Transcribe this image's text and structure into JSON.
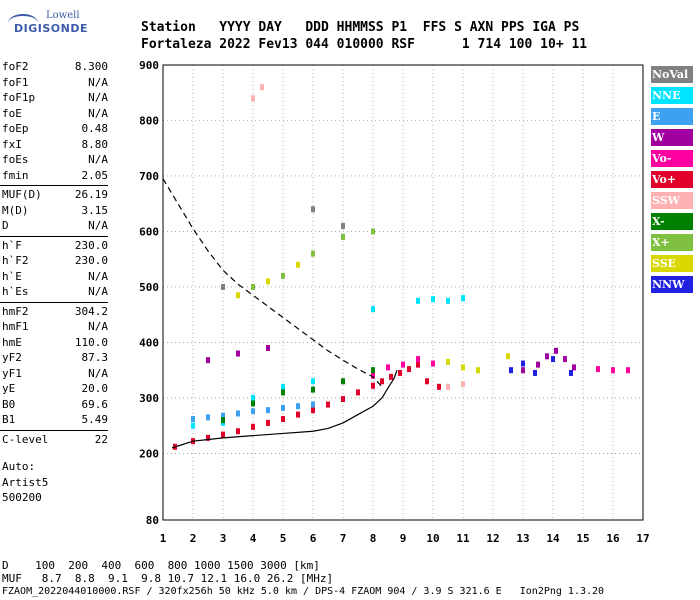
{
  "header": {
    "labels": "Station   YYYY DAY   DDD HHMMSS P1  FFS S AXN PPS IGA PS",
    "values": "Fortaleza 2022 Fev13 044 010000 RSF      1 714 100 10+ 11"
  },
  "logo": {
    "line1": "Lowell",
    "line2": "DIGISONDE"
  },
  "parameters": [
    {
      "name": "foF2",
      "value": "8.300"
    },
    {
      "name": "foF1",
      "value": "N/A"
    },
    {
      "name": "foF1p",
      "value": "N/A"
    },
    {
      "name": "foE",
      "value": "N/A"
    },
    {
      "name": "foEp",
      "value": "0.48"
    },
    {
      "name": "fxI",
      "value": "8.80"
    },
    {
      "name": "foEs",
      "value": "N/A"
    },
    {
      "name": "fmin",
      "value": "2.05"
    },
    {
      "name": "MUF(D)",
      "value": "26.19"
    },
    {
      "name": "M(D)",
      "value": "3.15"
    },
    {
      "name": "D",
      "value": "N/A"
    },
    {
      "name": "h`F",
      "value": "230.0"
    },
    {
      "name": "h`F2",
      "value": "230.0"
    },
    {
      "name": "h`E",
      "value": "N/A"
    },
    {
      "name": "h`Es",
      "value": "N/A"
    },
    {
      "name": "hmF2",
      "value": "304.2"
    },
    {
      "name": "hmF1",
      "value": "N/A"
    },
    {
      "name": "hmE",
      "value": "110.0"
    },
    {
      "name": "yF2",
      "value": "87.3"
    },
    {
      "name": "yF1",
      "value": "N/A"
    },
    {
      "name": "yE",
      "value": "20.0"
    },
    {
      "name": "B0",
      "value": "69.6"
    },
    {
      "name": "B1",
      "value": "5.49"
    },
    {
      "name": "C-level",
      "value": "22"
    }
  ],
  "extra_lines": [
    "Auto:",
    "Artist5",
    "500200"
  ],
  "legend": [
    {
      "label": "NoVal",
      "color": "#808080"
    },
    {
      "label": "NNE",
      "color": "#00e5ff"
    },
    {
      "label": "E",
      "color": "#3ea0f0"
    },
    {
      "label": "W",
      "color": "#a000a0"
    },
    {
      "label": "Vo-",
      "color": "#ff00a0"
    },
    {
      "label": "Vo+",
      "color": "#e0002a"
    },
    {
      "label": "SSW",
      "color": "#ffb0b0"
    },
    {
      "label": "X-",
      "color": "#008000"
    },
    {
      "label": "X+",
      "color": "#80c040"
    },
    {
      "label": "SSE",
      "color": "#d8d800"
    },
    {
      "label": "NNW",
      "color": "#2020e0"
    }
  ],
  "footer": {
    "d_row": "D    100  200  400  600  800 1000 1500 3000 [km]",
    "muf_row": "MUF   8.7  8.8  9.1  9.8 10.7 12.1 16.0 26.2 [MHz]",
    "file_row": "FZAOM_2022044010000.RSF / 320fx256h 50 kHz 5.0 km / DPS-4 FZAOM 904 / 3.9 S 321.6 E   Ion2Png 1.3.20"
  },
  "chart_data": {
    "type": "scatter",
    "title": "",
    "xlabel": "",
    "ylabel": "",
    "xlim": [
      1,
      17
    ],
    "ylim": [
      80,
      900
    ],
    "x_ticks": [
      1,
      2,
      3,
      4,
      5,
      6,
      7,
      8,
      9,
      10,
      11,
      12,
      13,
      14,
      15,
      16,
      17
    ],
    "y_ticks": [
      80,
      200,
      300,
      400,
      500,
      600,
      700,
      800,
      900
    ],
    "grid": true,
    "legend_placement": "right",
    "series": [
      {
        "name": "Vo+",
        "color": "#e0002a",
        "points": [
          [
            1.4,
            212
          ],
          [
            2,
            222
          ],
          [
            2.5,
            228
          ],
          [
            3,
            234
          ],
          [
            3.5,
            240
          ],
          [
            4,
            248
          ],
          [
            4.5,
            255
          ],
          [
            5,
            262
          ],
          [
            5.5,
            270
          ],
          [
            6,
            278
          ],
          [
            6.5,
            288
          ],
          [
            7,
            298
          ],
          [
            7.5,
            310
          ],
          [
            8,
            322
          ],
          [
            8.3,
            330
          ],
          [
            8.6,
            338
          ],
          [
            8.9,
            345
          ],
          [
            9.2,
            352
          ],
          [
            9.5,
            360
          ],
          [
            9.8,
            330
          ],
          [
            10.2,
            320
          ]
        ]
      },
      {
        "name": "E",
        "color": "#3ea0f0",
        "points": [
          [
            2,
            262
          ],
          [
            2.5,
            265
          ],
          [
            3,
            268
          ],
          [
            3.5,
            272
          ],
          [
            4,
            276
          ],
          [
            4.5,
            278
          ],
          [
            5,
            282
          ],
          [
            5.5,
            285
          ],
          [
            6,
            288
          ]
        ]
      },
      {
        "name": "NNE",
        "color": "#00e5ff",
        "points": [
          [
            2,
            250
          ],
          [
            3,
            255
          ],
          [
            4,
            300
          ],
          [
            5,
            320
          ],
          [
            6,
            330
          ],
          [
            9.5,
            475
          ],
          [
            10,
            478
          ],
          [
            10.5,
            475
          ],
          [
            11,
            480
          ],
          [
            8,
            460
          ]
        ]
      },
      {
        "name": "W",
        "color": "#a000a0",
        "points": [
          [
            13.5,
            360
          ],
          [
            13.8,
            375
          ],
          [
            14.1,
            385
          ],
          [
            14.4,
            370
          ],
          [
            14.7,
            355
          ],
          [
            13,
            350
          ],
          [
            2.5,
            368
          ],
          [
            3.5,
            380
          ],
          [
            4.5,
            390
          ]
        ]
      },
      {
        "name": "NNW",
        "color": "#2020e0",
        "points": [
          [
            12.6,
            350
          ],
          [
            13,
            362
          ],
          [
            13.4,
            345
          ],
          [
            14,
            370
          ],
          [
            14.6,
            345
          ]
        ]
      },
      {
        "name": "SSE",
        "color": "#d8d800",
        "points": [
          [
            10.5,
            365
          ],
          [
            11,
            355
          ],
          [
            11.5,
            350
          ],
          [
            12.5,
            375
          ],
          [
            3.5,
            485
          ],
          [
            4.5,
            510
          ],
          [
            5.5,
            540
          ]
        ]
      },
      {
        "name": "Vo-",
        "color": "#ff00a0",
        "points": [
          [
            8,
            340
          ],
          [
            8.5,
            355
          ],
          [
            9,
            360
          ],
          [
            9.5,
            370
          ],
          [
            10,
            362
          ],
          [
            15.5,
            352
          ],
          [
            16,
            350
          ],
          [
            16.5,
            350
          ]
        ]
      },
      {
        "name": "X-",
        "color": "#008000",
        "points": [
          [
            3,
            260
          ],
          [
            4,
            290
          ],
          [
            5,
            310
          ],
          [
            6,
            315
          ],
          [
            7,
            330
          ],
          [
            8,
            350
          ]
        ]
      },
      {
        "name": "X+",
        "color": "#80c040",
        "points": [
          [
            4,
            500
          ],
          [
            5,
            520
          ],
          [
            6,
            560
          ],
          [
            7,
            590
          ],
          [
            8,
            600
          ]
        ]
      },
      {
        "name": "SSW",
        "color": "#ffb0b0",
        "points": [
          [
            10.5,
            320
          ],
          [
            11,
            325
          ],
          [
            4,
            840
          ],
          [
            4.3,
            860
          ]
        ]
      },
      {
        "name": "NoVal",
        "color": "#808080",
        "points": [
          [
            6,
            640
          ],
          [
            7,
            610
          ],
          [
            3,
            500
          ]
        ]
      }
    ],
    "traces": {
      "muf_curve": {
        "color": "#000000",
        "dash": "6,4",
        "points": [
          [
            1,
            695
          ],
          [
            1.5,
            650
          ],
          [
            2,
            605
          ],
          [
            2.5,
            565
          ],
          [
            3,
            530
          ],
          [
            3.5,
            505
          ],
          [
            4,
            485
          ],
          [
            4.5,
            465
          ],
          [
            5,
            445
          ],
          [
            5.5,
            425
          ],
          [
            6,
            405
          ],
          [
            6.5,
            385
          ],
          [
            7,
            368
          ],
          [
            7.5,
            352
          ],
          [
            8,
            338
          ],
          [
            8.3,
            320
          ]
        ]
      },
      "profile": {
        "color": "#000000",
        "points": [
          [
            1.3,
            210
          ],
          [
            2,
            222
          ],
          [
            3,
            228
          ],
          [
            4,
            232
          ],
          [
            5,
            236
          ],
          [
            6,
            240
          ],
          [
            6.5,
            245
          ],
          [
            7,
            255
          ],
          [
            7.5,
            270
          ],
          [
            8,
            285
          ],
          [
            8.3,
            300
          ],
          [
            8.5,
            318
          ],
          [
            8.7,
            335
          ],
          [
            8.8,
            350
          ]
        ]
      }
    }
  }
}
